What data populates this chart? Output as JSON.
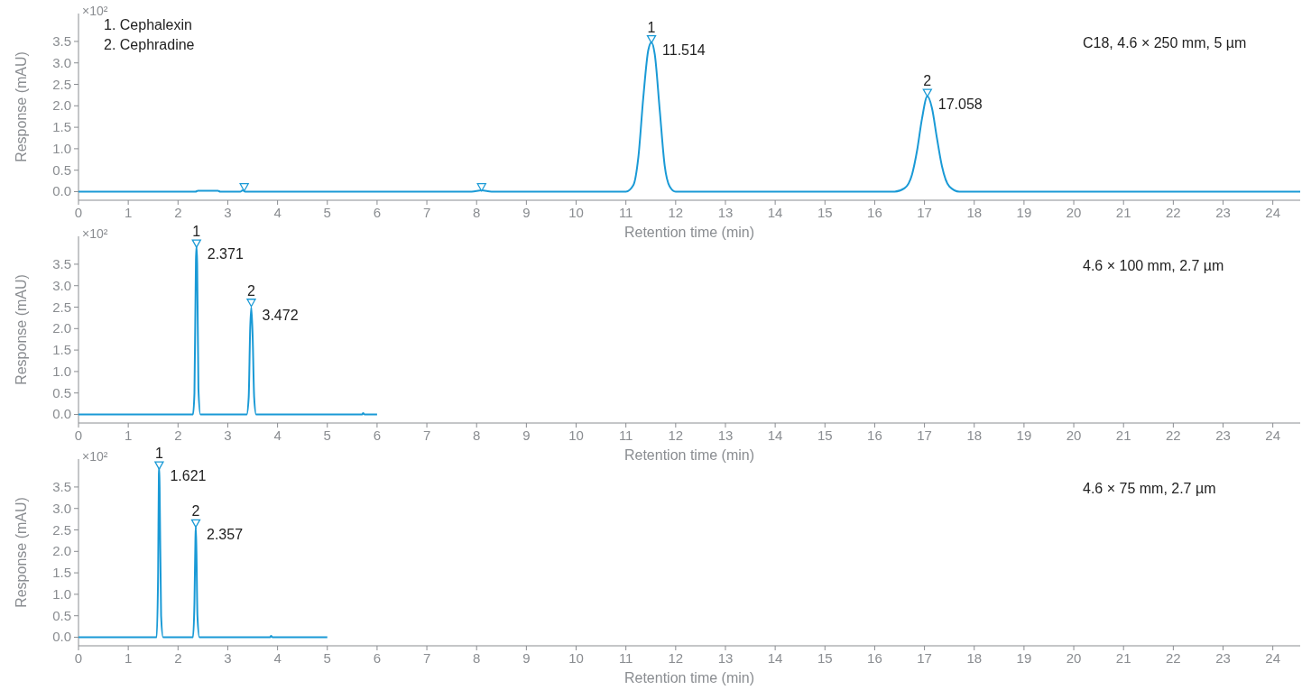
{
  "chart_data": [
    {
      "type": "line",
      "subtitle": "C18, 4.6 × 250 mm, 5 µm",
      "xlabel": "Retention time (min)",
      "ylabel": "Response (mAU)",
      "xlim": [
        0,
        24.55
      ],
      "xticks": [
        0,
        1,
        2,
        3,
        4,
        5,
        6,
        7,
        8,
        9,
        10,
        11,
        12,
        13,
        14,
        15,
        16,
        17,
        18,
        19,
        20,
        21,
        22,
        23,
        24
      ],
      "ylim": [
        -0.2,
        4.15
      ],
      "yticks": [
        {
          "value": 0,
          "label": "0.0"
        },
        {
          "value": 0.5,
          "label": "0.5"
        },
        {
          "value": 1,
          "label": "1.0"
        },
        {
          "value": 1.5,
          "label": "1.5"
        },
        {
          "value": 2,
          "label": "2.0"
        },
        {
          "value": 2.5,
          "label": "2.5"
        },
        {
          "value": 3,
          "label": "3.0"
        },
        {
          "value": 3.5,
          "label": "3.5"
        }
      ],
      "grid": false,
      "line_style": "solid",
      "annotations": [
        "×10²",
        "1.  Cephalexin",
        "2.  Cephradine",
        {
          "text": "1",
          "x": 11.514,
          "y": 3.55
        },
        {
          "text": "11.514",
          "x": 11.514,
          "y": 3.48
        },
        {
          "text": "2",
          "x": 17.058,
          "y": 2.3
        },
        {
          "text": "17.058",
          "x": 17.058,
          "y": 2.22
        }
      ],
      "series": [
        {
          "color": "#1a9ad6",
          "x": [
            0,
            2.35,
            2.4,
            2.8,
            2.85,
            3.25,
            3.3,
            3.35,
            7.9,
            8.1,
            8.3,
            11.0,
            11.15,
            11.25,
            11.35,
            11.45,
            11.514,
            11.58,
            11.68,
            11.78,
            11.88,
            12.0,
            16.4,
            16.6,
            16.75,
            16.85,
            16.95,
            17.058,
            17.15,
            17.25,
            17.35,
            17.5,
            17.7,
            24.55
          ],
          "values": [
            0,
            0,
            0.02,
            0.02,
            0,
            0,
            0.03,
            0,
            0,
            0.03,
            0,
            0,
            0.15,
            0.8,
            2.2,
            3.3,
            3.48,
            3.2,
            1.9,
            0.6,
            0.12,
            0,
            0,
            0.08,
            0.4,
            0.95,
            1.7,
            2.22,
            1.95,
            1.25,
            0.6,
            0.12,
            0,
            0
          ]
        },
        {
          "type": "scatter",
          "marker": "triangle",
          "color": "#1a9ad6",
          "x": [
            3.33,
            8.1,
            11.514,
            17.058
          ],
          "values": [
            0.1,
            0.1,
            3.55,
            2.3
          ]
        }
      ]
    },
    {
      "type": "line",
      "subtitle": "4.6 × 100 mm, 2.7 µm",
      "xlabel": "Retention time (min)",
      "ylabel": "Response (mAU)",
      "xlim": [
        0,
        24.55
      ],
      "xticks": [
        0,
        1,
        2,
        3,
        4,
        5,
        6,
        7,
        8,
        9,
        10,
        11,
        12,
        13,
        14,
        15,
        16,
        17,
        18,
        19,
        20,
        21,
        22,
        23,
        24
      ],
      "ylim": [
        -0.2,
        4.15
      ],
      "yticks": [
        {
          "value": 0,
          "label": "0.0"
        },
        {
          "value": 0.5,
          "label": "0.5"
        },
        {
          "value": 1,
          "label": "1.0"
        },
        {
          "value": 1.5,
          "label": "1.5"
        },
        {
          "value": 2,
          "label": "2.0"
        },
        {
          "value": 2.5,
          "label": "2.5"
        },
        {
          "value": 3,
          "label": "3.0"
        },
        {
          "value": 3.5,
          "label": "3.5"
        }
      ],
      "grid": false,
      "line_style": "solid",
      "annotations": [
        "×10²",
        {
          "text": "1",
          "x": 2.371,
          "y": 3.98
        },
        {
          "text": "2.371",
          "x": 2.371,
          "y": 3.92
        },
        {
          "text": "2",
          "x": 3.472,
          "y": 2.6
        },
        {
          "text": "3.472",
          "x": 3.472,
          "y": 2.5
        }
      ],
      "series": [
        {
          "color": "#1a9ad6",
          "x": [
            0,
            2.3,
            2.33,
            2.36,
            2.371,
            2.385,
            2.41,
            2.45,
            3.38,
            3.42,
            3.45,
            3.472,
            3.5,
            3.53,
            3.57,
            5.7,
            5.72,
            5.75,
            6.0
          ],
          "values": [
            0,
            0,
            0.5,
            3.6,
            3.92,
            3.5,
            0.6,
            0,
            0,
            0.4,
            2.0,
            2.5,
            1.8,
            0.4,
            0,
            0,
            0.03,
            0,
            0
          ]
        },
        {
          "type": "scatter",
          "marker": "triangle",
          "color": "#1a9ad6",
          "x": [
            2.371,
            3.472
          ],
          "values": [
            3.98,
            2.6
          ]
        }
      ]
    },
    {
      "type": "line",
      "subtitle": "4.6 × 75 mm, 2.7 µm",
      "xlabel": "Retention time (min)",
      "ylabel": "Response (mAU)",
      "xlim": [
        0,
        24.55
      ],
      "xticks": [
        0,
        1,
        2,
        3,
        4,
        5,
        6,
        7,
        8,
        9,
        10,
        11,
        12,
        13,
        14,
        15,
        16,
        17,
        18,
        19,
        20,
        21,
        22,
        23,
        24
      ],
      "ylim": [
        -0.2,
        4.15
      ],
      "yticks": [
        {
          "value": 0,
          "label": "0.0"
        },
        {
          "value": 0.5,
          "label": "0.5"
        },
        {
          "value": 1,
          "label": "1.0"
        },
        {
          "value": 1.5,
          "label": "1.5"
        },
        {
          "value": 2,
          "label": "2.0"
        },
        {
          "value": 2.5,
          "label": "2.5"
        },
        {
          "value": 3,
          "label": "3.0"
        },
        {
          "value": 3.5,
          "label": "3.5"
        }
      ],
      "grid": false,
      "line_style": "solid",
      "annotations": [
        "×10²",
        {
          "text": "1",
          "x": 1.621,
          "y": 4.0
        },
        {
          "text": "1.621",
          "x": 1.621,
          "y": 3.95
        },
        {
          "text": "2",
          "x": 2.357,
          "y": 2.65
        },
        {
          "text": "2.357",
          "x": 2.357,
          "y": 2.57
        }
      ],
      "series": [
        {
          "color": "#1a9ad6",
          "x": [
            0,
            1.57,
            1.6,
            1.615,
            1.621,
            1.63,
            1.66,
            1.7,
            2.3,
            2.33,
            2.35,
            2.357,
            2.37,
            2.39,
            2.43,
            3.85,
            3.87,
            3.9,
            5.0
          ],
          "values": [
            0,
            0,
            1.5,
            3.8,
            3.95,
            3.5,
            0.5,
            0,
            0,
            0.8,
            2.3,
            2.57,
            2.0,
            0.5,
            0,
            0,
            0.03,
            0,
            0
          ]
        },
        {
          "type": "scatter",
          "marker": "triangle",
          "color": "#1a9ad6",
          "x": [
            1.621,
            2.357
          ],
          "values": [
            4.0,
            2.65
          ]
        }
      ]
    }
  ]
}
